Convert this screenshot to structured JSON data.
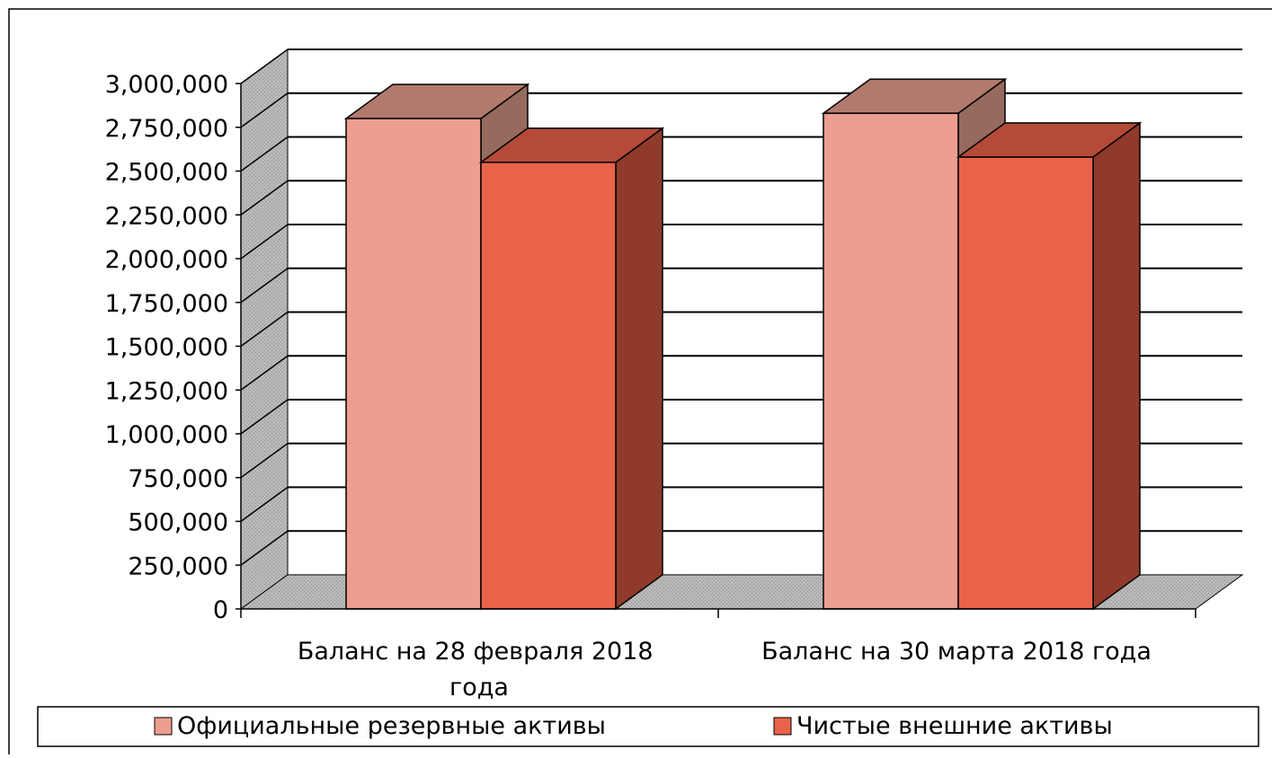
{
  "chart_data": {
    "type": "bar",
    "style": "3d-clustered-column",
    "categories": [
      "Баланс на 28 февраля 2018 года",
      "Баланс на 30 марта 2018 года"
    ],
    "series": [
      {
        "name": "Официальные резервные активы",
        "values": [
          2800000,
          2830000
        ]
      },
      {
        "name": "Чистые внешние активы",
        "values": [
          2550000,
          2580000
        ]
      }
    ],
    "ylim": [
      0,
      3000000
    ],
    "yticks": [
      "0",
      "250,000",
      "500,000",
      "750,000",
      "1,000,000",
      "1,250,000",
      "1,500,000",
      "1,750,000",
      "2,000,000",
      "2,250,000",
      "2,500,000",
      "2,750,000",
      "3,000,000"
    ],
    "grid": true,
    "legend_position": "bottom",
    "colors": {
      "series1_front": "#ec9e90",
      "series1_top": "#b27a6c",
      "series1_side": "#966b5e",
      "series2_front": "#e9634a",
      "series2_top": "#b44a37",
      "series2_side": "#8f3a2a",
      "floor": "#a8a8a8",
      "wall": "#bfbfbf"
    }
  }
}
